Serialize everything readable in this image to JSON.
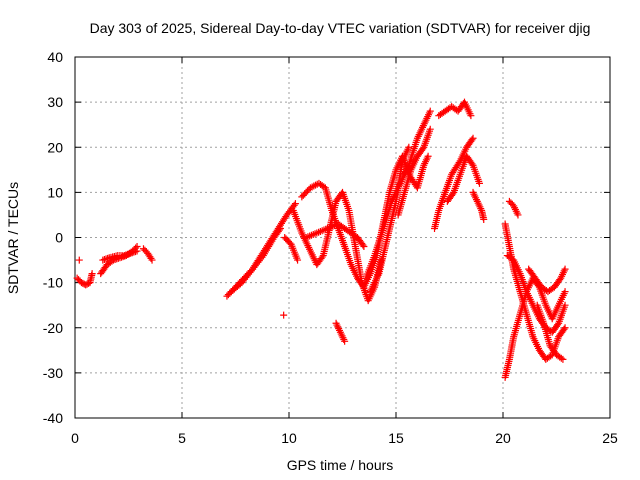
{
  "chart_data": {
    "type": "scatter",
    "title": "Day 303 of 2025, Sidereal Day-to-day VTEC variation (SDTVAR) for receiver djig",
    "xlabel": "GPS time / hours",
    "ylabel": "SDTVAR / TECUs",
    "xlim": [
      0,
      25
    ],
    "ylim": [
      -40,
      40
    ],
    "xticks": [
      "0",
      "5",
      "10",
      "15",
      "20",
      "25"
    ],
    "yticks": [
      "-40",
      "-30",
      "-20",
      "-10",
      "0",
      "10",
      "20",
      "30",
      "40"
    ],
    "grid": true,
    "marker": "+",
    "color": "#ff0000",
    "series": [
      {
        "x": [
          0.1,
          0.3,
          0.5,
          0.7,
          0.8
        ],
        "y": [
          -9,
          -10,
          -10.5,
          -10,
          -8
        ]
      },
      {
        "x": [
          0.2
        ],
        "y": [
          -5
        ]
      },
      {
        "x": [
          1.2,
          1.5,
          1.8,
          2.1,
          2.4,
          2.7,
          2.9
        ],
        "y": [
          -8,
          -6,
          -5,
          -4.5,
          -4,
          -3,
          -2
        ]
      },
      {
        "x": [
          1.3,
          1.6,
          2.0,
          2.3,
          2.6,
          2.9
        ],
        "y": [
          -5,
          -4.5,
          -4,
          -4,
          -3.5,
          -3
        ]
      },
      {
        "x": [
          3.2,
          3.4,
          3.6
        ],
        "y": [
          -2.5,
          -3.5,
          -5
        ]
      },
      {
        "x": [
          7.1,
          7.5,
          7.9,
          8.3,
          8.7,
          9.1,
          9.5,
          9.9,
          10.3
        ],
        "y": [
          -13,
          -11,
          -9,
          -7,
          -4,
          -1,
          2,
          5,
          7.5
        ]
      },
      {
        "x": [
          7.3,
          7.8,
          8.3,
          8.8,
          9.3,
          9.6
        ],
        "y": [
          -12,
          -10,
          -7,
          -4,
          0,
          2
        ]
      },
      {
        "x": [
          9.8,
          10.1,
          10.4
        ],
        "y": [
          0,
          -1.5,
          -5
        ]
      },
      {
        "x": [
          9.75
        ],
        "y": [
          -17.2
        ]
      },
      {
        "x": [
          10.2,
          10.6,
          11.0,
          11.3,
          11.6,
          11.9,
          12.2,
          12.5,
          12.8,
          13.1,
          13.4,
          13.7,
          14.0,
          14.3
        ],
        "y": [
          6,
          1,
          -3,
          -6,
          -4,
          2,
          8,
          10,
          6,
          -2,
          -10,
          -14,
          -11,
          -5
        ]
      },
      {
        "x": [
          10.6,
          11.0,
          11.4,
          11.7,
          12.0,
          12.3,
          12.6,
          12.9,
          13.2,
          13.5,
          13.8,
          14.1,
          14.4,
          14.7,
          15.0,
          15.3,
          15.6,
          16.0,
          16.3,
          16.5
        ],
        "y": [
          9,
          11,
          12,
          11,
          6,
          2,
          -2,
          -6,
          -9,
          -11,
          -8,
          -4,
          3,
          10,
          15,
          18,
          14,
          11,
          16,
          18
        ]
      },
      {
        "x": [
          10.8,
          11.3,
          11.8,
          12.3,
          12.6,
          12.9,
          13.2,
          13.5
        ],
        "y": [
          0,
          1,
          2,
          3,
          2,
          1,
          0,
          -2
        ]
      },
      {
        "x": [
          12.2,
          12.4,
          12.6
        ],
        "y": [
          -19,
          -21,
          -23
        ]
      },
      {
        "x": [
          13.6,
          14.0,
          14.4,
          14.8,
          15.2,
          15.6,
          16.0,
          16.4,
          16.6
        ],
        "y": [
          -9,
          -4,
          2,
          8,
          12,
          16,
          22,
          26,
          28
        ]
      },
      {
        "x": [
          13.8,
          14.2,
          14.6,
          15.0,
          15.3,
          15.6
        ],
        "y": [
          -12,
          -8,
          0,
          8,
          17,
          20
        ]
      },
      {
        "x": [
          15.1,
          15.4,
          15.7,
          16.0,
          16.3,
          16.6
        ],
        "y": [
          5,
          10,
          15,
          18,
          20,
          24
        ]
      },
      {
        "x": [
          16.8,
          17.0,
          17.3,
          17.6,
          18.0,
          18.3,
          18.6
        ],
        "y": [
          2,
          6,
          10,
          14,
          17,
          20,
          22
        ]
      },
      {
        "x": [
          17.0,
          17.3,
          17.6,
          17.9,
          18.2,
          18.5
        ],
        "y": [
          27,
          28,
          29,
          28,
          30,
          27
        ]
      },
      {
        "x": [
          17.4,
          17.7,
          18.0,
          18.3,
          18.6,
          18.9
        ],
        "y": [
          8,
          10,
          14,
          18,
          16,
          12
        ]
      },
      {
        "x": [
          18.6,
          18.8,
          19.0,
          19.1
        ],
        "y": [
          10,
          8,
          6,
          4
        ]
      },
      {
        "x": [
          20.1,
          20.3,
          20.5,
          20.8,
          21.1,
          21.4,
          21.7,
          22.0,
          22.3,
          22.6,
          22.9
        ],
        "y": [
          3,
          -2,
          -7,
          -12,
          -17,
          -22,
          -25,
          -27,
          -26,
          -22,
          -20
        ]
      },
      {
        "x": [
          20.1,
          20.3,
          20.5,
          20.8,
          21.1,
          21.4,
          21.7,
          22.0,
          22.3,
          22.6,
          22.9
        ],
        "y": [
          -31,
          -27,
          -22,
          -17,
          -12,
          -9,
          -11,
          -15,
          -18,
          -15,
          -12
        ]
      },
      {
        "x": [
          20.2,
          20.5,
          20.8,
          21.1,
          21.4,
          21.7,
          22.0,
          22.3,
          22.6,
          22.9
        ],
        "y": [
          -4,
          -5,
          -8,
          -12,
          -15,
          -18,
          -20,
          -21,
          -19,
          -15
        ]
      },
      {
        "x": [
          20.3,
          20.5,
          20.7
        ],
        "y": [
          8,
          7,
          5
        ]
      },
      {
        "x": [
          21.2,
          21.5,
          21.8,
          22.1,
          22.4,
          22.7,
          22.9
        ],
        "y": [
          -7,
          -9,
          -11,
          -12,
          -11,
          -9,
          -7
        ]
      },
      {
        "x": [
          21.6,
          21.9,
          22.2,
          22.5,
          22.8
        ],
        "y": [
          -15,
          -19,
          -24,
          -26,
          -27
        ]
      }
    ]
  }
}
